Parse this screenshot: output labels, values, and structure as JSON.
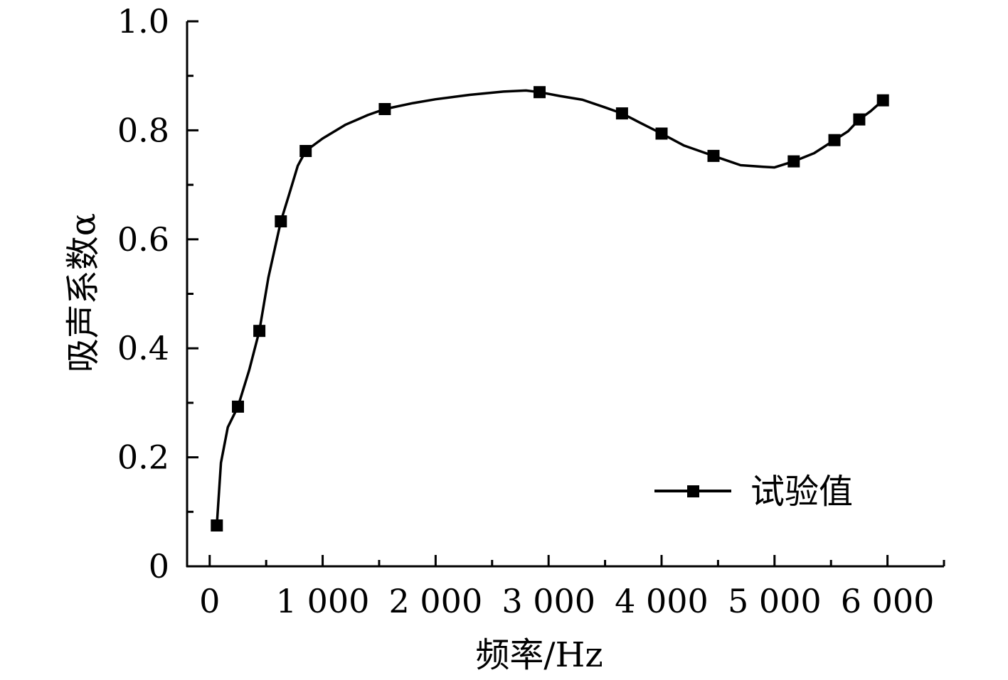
{
  "chart_data": {
    "type": "line",
    "xlabel": "频率/Hz",
    "ylabel": "吸声系数α",
    "xlim": [
      -200,
      6500
    ],
    "ylim": [
      0,
      1.0
    ],
    "x_ticks": [
      0,
      1000,
      2000,
      3000,
      4000,
      5000,
      6000
    ],
    "x_tick_labels": [
      "0",
      "1 000",
      "2 000",
      "3 000",
      "4 000",
      "5 000",
      "6 000"
    ],
    "y_ticks": [
      0,
      0.2,
      0.4,
      0.6,
      0.8,
      1.0
    ],
    "y_tick_labels": [
      "0",
      "0.2",
      "0.4",
      "0.6",
      "0.8",
      "1.0"
    ],
    "grid": false,
    "legend_position": "bottom-right",
    "series": [
      {
        "name": "试验值",
        "color": "#000000",
        "marker": "square",
        "markers": [
          {
            "x": 63,
            "y": 0.075
          },
          {
            "x": 250,
            "y": 0.293
          },
          {
            "x": 440,
            "y": 0.432
          },
          {
            "x": 630,
            "y": 0.633
          },
          {
            "x": 850,
            "y": 0.762
          },
          {
            "x": 1550,
            "y": 0.839
          },
          {
            "x": 2920,
            "y": 0.87
          },
          {
            "x": 3650,
            "y": 0.831
          },
          {
            "x": 4000,
            "y": 0.794
          },
          {
            "x": 4460,
            "y": 0.753
          },
          {
            "x": 5170,
            "y": 0.743
          },
          {
            "x": 5530,
            "y": 0.782
          },
          {
            "x": 5750,
            "y": 0.82
          },
          {
            "x": 5960,
            "y": 0.855
          }
        ],
        "curve": [
          {
            "x": 63,
            "y": 0.075
          },
          {
            "x": 100,
            "y": 0.19
          },
          {
            "x": 160,
            "y": 0.255
          },
          {
            "x": 250,
            "y": 0.293
          },
          {
            "x": 350,
            "y": 0.36
          },
          {
            "x": 440,
            "y": 0.432
          },
          {
            "x": 520,
            "y": 0.53
          },
          {
            "x": 630,
            "y": 0.633
          },
          {
            "x": 700,
            "y": 0.68
          },
          {
            "x": 780,
            "y": 0.735
          },
          {
            "x": 850,
            "y": 0.762
          },
          {
            "x": 1000,
            "y": 0.785
          },
          {
            "x": 1200,
            "y": 0.81
          },
          {
            "x": 1400,
            "y": 0.828
          },
          {
            "x": 1550,
            "y": 0.839
          },
          {
            "x": 1800,
            "y": 0.85
          },
          {
            "x": 2000,
            "y": 0.857
          },
          {
            "x": 2300,
            "y": 0.865
          },
          {
            "x": 2600,
            "y": 0.871
          },
          {
            "x": 2800,
            "y": 0.873
          },
          {
            "x": 2920,
            "y": 0.87
          },
          {
            "x": 3100,
            "y": 0.863
          },
          {
            "x": 3300,
            "y": 0.856
          },
          {
            "x": 3500,
            "y": 0.842
          },
          {
            "x": 3650,
            "y": 0.831
          },
          {
            "x": 3800,
            "y": 0.815
          },
          {
            "x": 4000,
            "y": 0.794
          },
          {
            "x": 4200,
            "y": 0.772
          },
          {
            "x": 4460,
            "y": 0.753
          },
          {
            "x": 4700,
            "y": 0.736
          },
          {
            "x": 4900,
            "y": 0.733
          },
          {
            "x": 5000,
            "y": 0.732
          },
          {
            "x": 5170,
            "y": 0.743
          },
          {
            "x": 5350,
            "y": 0.758
          },
          {
            "x": 5530,
            "y": 0.782
          },
          {
            "x": 5650,
            "y": 0.798
          },
          {
            "x": 5750,
            "y": 0.82
          },
          {
            "x": 5850,
            "y": 0.835
          },
          {
            "x": 5960,
            "y": 0.855
          }
        ]
      }
    ]
  }
}
